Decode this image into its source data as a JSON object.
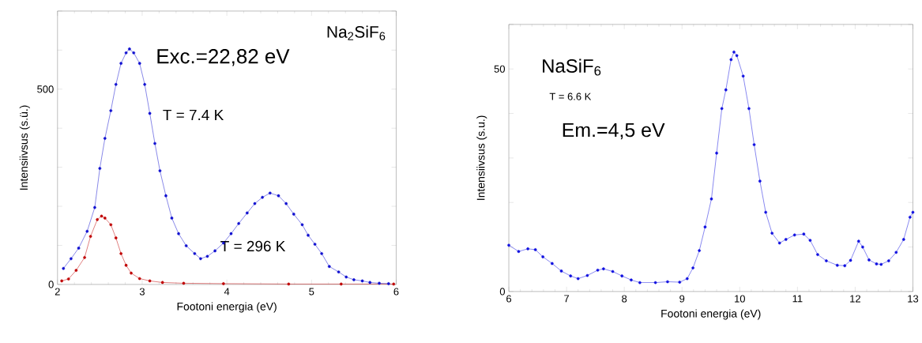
{
  "chart_data": [
    {
      "type": "line",
      "xlabel": "Footoni energia (eV)",
      "ylabel": "Intensiivsus (s.ü.)",
      "marker": "circle",
      "xlim": [
        2,
        6
      ],
      "ylim": [
        0,
        700
      ],
      "xticks": [
        2,
        3,
        4,
        5,
        6
      ],
      "yticks": [
        0,
        {
          "value": 100,
          "label": null
        },
        {
          "value": 200,
          "label": null
        },
        {
          "value": 300,
          "label": null
        },
        {
          "value": 400,
          "label": null
        },
        500,
        {
          "value": 600,
          "label": null
        },
        {
          "value": 700,
          "label": null
        }
      ],
      "annotations": [
        "Na$_{2}$SiF$_{6}$",
        "Exc.=22,82 eV",
        "T = 7.4 K",
        "T = 296 K"
      ],
      "series": [
        {
          "color": "#1010d0",
          "x": [
            2.07,
            2.16,
            2.25,
            2.35,
            2.44,
            2.5,
            2.56,
            2.63,
            2.69,
            2.75,
            2.81,
            2.85,
            2.9,
            2.97,
            3.03,
            3.09,
            3.15,
            3.21,
            3.28,
            3.35,
            3.43,
            3.52,
            3.62,
            3.69,
            3.77,
            3.86,
            3.96,
            4.05,
            4.14,
            4.24,
            4.33,
            4.42,
            4.51,
            4.61,
            4.7,
            4.79,
            4.89,
            4.96,
            5.04,
            5.12,
            5.21,
            5.32,
            5.41,
            5.5,
            5.6,
            5.69,
            5.8,
            5.91
          ],
          "values": [
            41,
            66,
            93,
            136,
            197,
            297,
            374,
            445,
            512,
            566,
            593,
            603,
            593,
            566,
            512,
            438,
            361,
            291,
            227,
            170,
            130,
            99,
            79,
            66,
            72,
            86,
            106,
            130,
            156,
            183,
            207,
            223,
            234,
            227,
            207,
            180,
            153,
            126,
            103,
            79,
            46,
            32,
            19,
            12,
            9,
            5,
            3,
            2
          ]
        },
        {
          "color": "#c00000",
          "x": [
            2.05,
            2.13,
            2.22,
            2.32,
            2.39,
            2.47,
            2.52,
            2.56,
            2.63,
            2.69,
            2.75,
            2.81,
            2.87,
            2.97,
            3.09,
            3.24,
            3.49,
            3.96,
            4.73,
            5.35,
            5.97
          ],
          "values": [
            9,
            14,
            36,
            69,
            123,
            166,
            175,
            170,
            153,
            119,
            79,
            49,
            29,
            15,
            9,
            5,
            3,
            2,
            1,
            1,
            1
          ]
        }
      ]
    },
    {
      "type": "line",
      "xlabel": "Footoni energia (eV)",
      "ylabel": "Intensiivsus (s.u.)",
      "marker": "circle",
      "xlim": [
        6,
        13
      ],
      "ylim": [
        0,
        60
      ],
      "xticks": [
        6,
        7,
        8,
        9,
        10,
        11,
        12,
        13
      ],
      "yticks": [
        0,
        {
          "value": 10,
          "label": null
        },
        {
          "value": 20,
          "label": null
        },
        {
          "value": 30,
          "label": null
        },
        {
          "value": 40,
          "label": null
        },
        50,
        {
          "value": 60,
          "label": null
        }
      ],
      "annotations": [
        "NaSiF$_{6}$",
        "T = 6.6 K",
        "Em.=4,5 eV"
      ],
      "series": [
        {
          "color": "#1010e0",
          "x": [
            6.0,
            6.17,
            6.33,
            6.46,
            6.59,
            6.75,
            6.91,
            7.07,
            7.2,
            7.36,
            7.54,
            7.64,
            7.8,
            7.96,
            8.12,
            8.27,
            8.54,
            8.75,
            8.96,
            9.09,
            9.19,
            9.3,
            9.4,
            9.51,
            9.6,
            9.69,
            9.76,
            9.85,
            9.9,
            9.95,
            10.06,
            10.16,
            10.25,
            10.35,
            10.45,
            10.56,
            10.69,
            10.8,
            10.95,
            11.11,
            11.22,
            11.35,
            11.5,
            11.69,
            11.82,
            11.92,
            12.06,
            12.13,
            12.24,
            12.37,
            12.45,
            12.58,
            12.71,
            12.84,
            12.95,
            13.0
          ],
          "values": [
            10.4,
            9.0,
            9.6,
            9.4,
            7.8,
            6.3,
            4.6,
            3.5,
            2.9,
            3.6,
            4.8,
            5.1,
            4.5,
            3.5,
            2.6,
            2.0,
            2.0,
            2.2,
            2.1,
            2.9,
            5.3,
            9.2,
            14.5,
            20.8,
            31.1,
            41.1,
            45.3,
            52.1,
            53.8,
            53.0,
            48.4,
            41.1,
            33.0,
            24.8,
            17.8,
            13.1,
            10.9,
            11.7,
            12.7,
            12.9,
            11.5,
            8.3,
            6.9,
            5.9,
            5.8,
            7.0,
            11.3,
            10.0,
            7.1,
            6.2,
            6.1,
            6.9,
            8.8,
            11.7,
            16.7,
            17.8
          ]
        }
      ]
    }
  ]
}
